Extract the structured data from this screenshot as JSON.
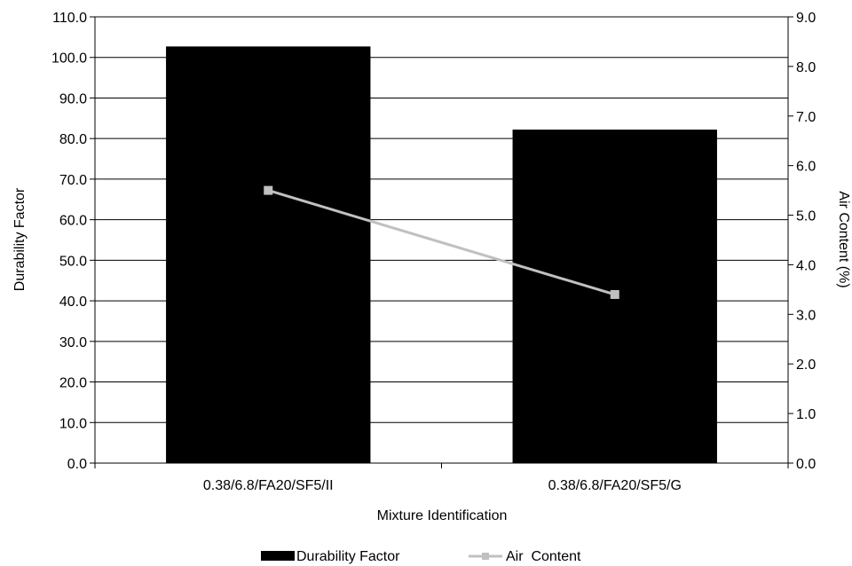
{
  "chart_data": {
    "type": "bar",
    "categories": [
      "0.38/6.8/FA20/SF5/II",
      "0.38/6.8/FA20/SF5/G"
    ],
    "xlabel": "Mixture Identification",
    "ylabel": "Durability Factor",
    "y2label": "Air Content (%)",
    "ylim": [
      0,
      110
    ],
    "y2lim": [
      0,
      9
    ],
    "yticks": [
      "0.0",
      "10.0",
      "20.0",
      "30.0",
      "40.0",
      "50.0",
      "60.0",
      "70.0",
      "80.0",
      "90.0",
      "100.0",
      "110.0"
    ],
    "y2ticks": [
      "0.0",
      "1.0",
      "2.0",
      "3.0",
      "4.0",
      "5.0",
      "6.0",
      "7.0",
      "8.0",
      "9.0"
    ],
    "grid": true,
    "legend_position": "bottom",
    "series": [
      {
        "name": "Durability Factor",
        "kind": "bar",
        "axis": "left",
        "values": [
          102.7,
          82.2
        ],
        "color": "#000000"
      },
      {
        "name": "Air  Content",
        "kind": "line",
        "axis": "right",
        "values": [
          5.5,
          3.4
        ],
        "color": "#c0c0c0"
      }
    ]
  }
}
